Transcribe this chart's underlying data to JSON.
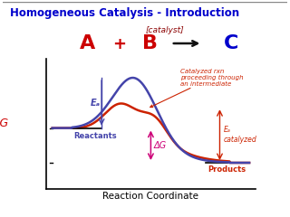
{
  "title": "Homogeneous Catalysis - Introduction",
  "title_color": "#0000cc",
  "title_fontsize": 8.5,
  "xlabel": "Reaction Coordinate",
  "ylabel": "ΔG",
  "ylabel_color": "#cc0000",
  "bg_color": "#ffffff",
  "box_color": "#888888",
  "uncatalyzed_color": "#4444aa",
  "catalyzed_color": "#cc2200",
  "reactant_level": 0.58,
  "product_level": 0.22,
  "labels": {
    "Ea_label": "Eₐ",
    "Ea_catalyzed": "Eₐ\ncatalyzed",
    "delta_G": "ΔG",
    "Reactants": "Reactants",
    "Products": "Products",
    "annotation": "Catalyzed rxn\nproceeding through\nan intermediate",
    "catalyst": "[catalyst]",
    "A": "A",
    "plus": "+",
    "B": "B",
    "C": "C"
  },
  "reaction_colors": {
    "reactant": "#cc0000",
    "product": "#0000cc",
    "catalyst": "#8B0000",
    "arrow": "#111111"
  }
}
